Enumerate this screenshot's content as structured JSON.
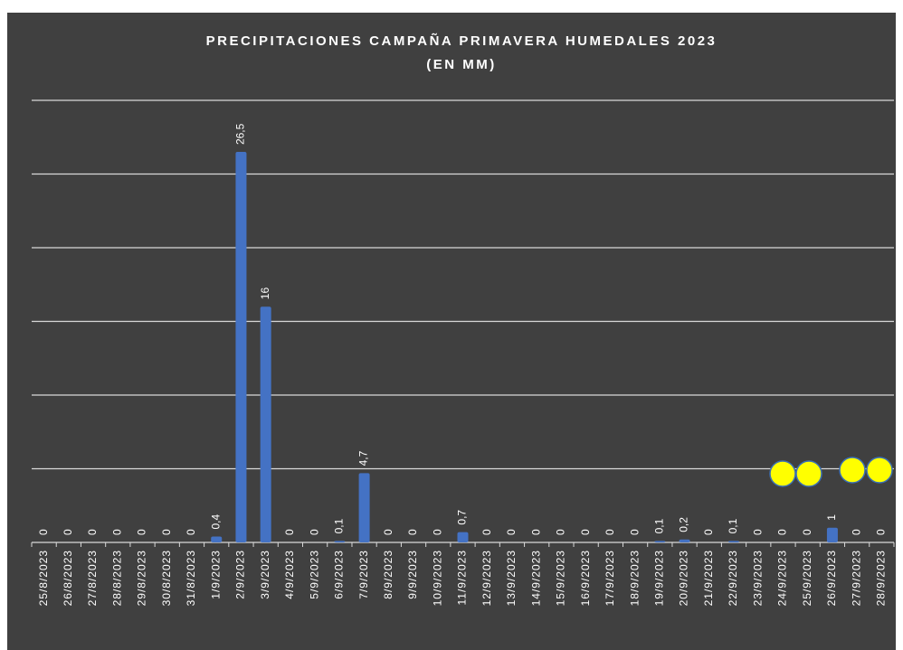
{
  "chart_data": {
    "type": "bar",
    "title": "PRECIPITACIONES CAMPAÑA PRIMAVERA HUMEDALES 2023",
    "subtitle": "(EN MM)",
    "categories": [
      "25/8/2023",
      "26/8/2023",
      "27/8/2023",
      "28/8/2023",
      "29/8/2023",
      "30/8/2023",
      "31/8/2023",
      "1/9/2023",
      "2/9/2023",
      "3/9/2023",
      "4/9/2023",
      "5/9/2023",
      "6/9/2023",
      "7/9/2023",
      "8/9/2023",
      "9/9/2023",
      "10/9/2023",
      "11/9/2023",
      "12/9/2023",
      "13/9/2023",
      "14/9/2023",
      "15/9/2023",
      "16/9/2023",
      "17/9/2023",
      "18/9/2023",
      "19/9/2023",
      "20/9/2023",
      "21/9/2023",
      "22/9/2023",
      "23/9/2023",
      "24/9/2023",
      "25/9/2023",
      "26/9/2023",
      "27/9/2023",
      "28/9/2023"
    ],
    "values": [
      0,
      0,
      0,
      0,
      0,
      0,
      0,
      0.4,
      26.5,
      16,
      0,
      0,
      0.1,
      4.7,
      0,
      0,
      0,
      0.7,
      0,
      0,
      0,
      0,
      0,
      0,
      0,
      0.1,
      0.2,
      0,
      0.1,
      0,
      0,
      0,
      1,
      0,
      0
    ],
    "value_labels": [
      "0",
      "0",
      "0",
      "0",
      "0",
      "0",
      "0",
      "0,4",
      "26,5",
      "16",
      "0",
      "0",
      "0,1",
      "4,7",
      "0",
      "0",
      "0",
      "0,7",
      "0",
      "0",
      "0",
      "0",
      "0",
      "0",
      "0",
      "0,1",
      "0,2",
      "0",
      "0,1",
      "0",
      "0",
      "0",
      "1",
      "0",
      "0"
    ],
    "color": "#4472c4",
    "ylim": [
      0,
      30
    ],
    "yticks": [
      0,
      5,
      10,
      15,
      20,
      25,
      30
    ],
    "grid": true
  }
}
